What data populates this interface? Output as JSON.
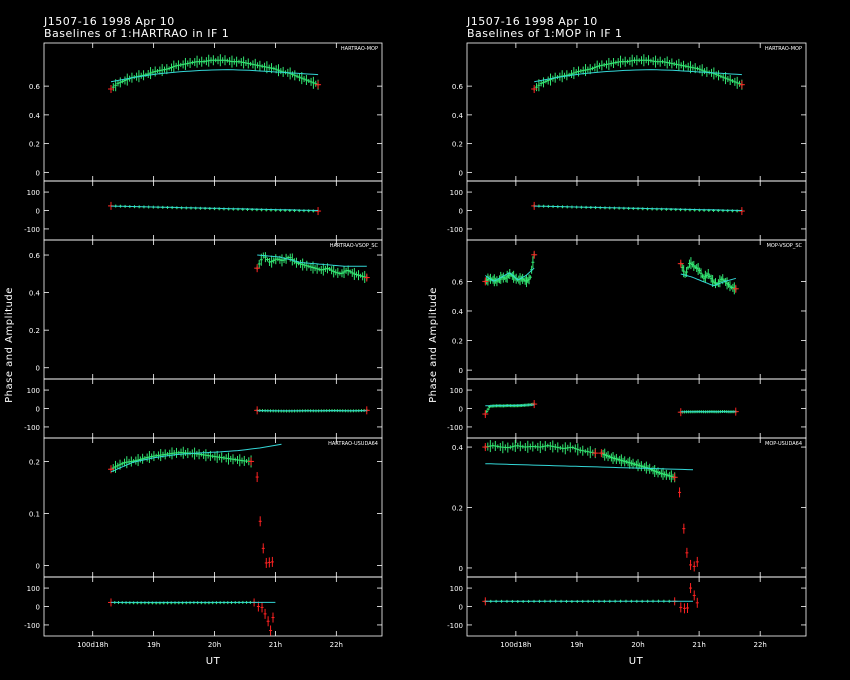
{
  "figure": {
    "ylabel": "Phase and Amplitude",
    "xlabel": "UT"
  },
  "columns": [
    {
      "title_line1": "J1507-16  1998 Apr 10",
      "title_line2": "Baselines of 1:HARTRAO in IF 1",
      "x_ticks": [
        {
          "v": 18,
          "text": "100d18h"
        },
        {
          "v": 19,
          "text": "19h"
        },
        {
          "v": 20,
          "text": "20h"
        },
        {
          "v": 21,
          "text": "21h"
        },
        {
          "v": 22,
          "text": "22h"
        }
      ],
      "panels": [
        {
          "corner_label": "HARTRAO-MOP",
          "amp_ticks": [
            "0",
            "0.2",
            "0.4",
            "0.6"
          ],
          "phase_ticks": [
            "100",
            "0",
            "-100"
          ]
        },
        {
          "corner_label": "HARTRAO-VSOP_SC",
          "amp_ticks": [
            "0",
            "0.2",
            "0.4",
            "0.6"
          ],
          "phase_ticks": [
            "100",
            "0",
            "-100"
          ]
        },
        {
          "corner_label": "HARTRAO-USUDA64",
          "amp_ticks": [
            "0",
            "0.1",
            "0.2"
          ],
          "phase_ticks": [
            "100",
            "0",
            "-100"
          ]
        }
      ]
    },
    {
      "title_line1": "J1507-16  1998 Apr 10",
      "title_line2": "Baselines of 1:MOP in IF 1",
      "x_ticks": [
        {
          "v": 18,
          "text": "100d18h"
        },
        {
          "v": 19,
          "text": "19h"
        },
        {
          "v": 20,
          "text": "20h"
        },
        {
          "v": 21,
          "text": "21h"
        },
        {
          "v": 22,
          "text": "22h"
        }
      ],
      "panels": [
        {
          "corner_label": "HARTRAO-MOP",
          "amp_ticks": [
            "0",
            "0.2",
            "0.4",
            "0.6"
          ],
          "phase_ticks": [
            "100",
            "0",
            "-100"
          ]
        },
        {
          "corner_label": "MOP-VSOP_SC",
          "amp_ticks": [
            "0",
            "0.2",
            "0.4",
            "0.6"
          ],
          "phase_ticks": [
            "100",
            "0",
            "-100"
          ]
        },
        {
          "corner_label": "MOP-USUDA64",
          "amp_ticks": [
            "0",
            "0.2",
            "0.4"
          ],
          "phase_ticks": [
            "100",
            "0",
            "-100"
          ]
        }
      ]
    }
  ],
  "chart_data": [
    {
      "type": "scatter",
      "baseline": "HARTRAO-MOP",
      "xlim": [
        17.2,
        22.75
      ],
      "amp_ylim": [
        -0.06,
        0.9
      ],
      "phase_ylim": [
        -160,
        160
      ],
      "series": [
        {
          "kind": "amplitude",
          "start": 18.3,
          "end": 21.7,
          "vals": [
            0.58,
            0.62,
            0.64,
            0.66,
            0.67,
            0.68,
            0.7,
            0.71,
            0.72,
            0.74,
            0.75,
            0.76,
            0.77,
            0.77,
            0.78,
            0.78,
            0.78,
            0.77,
            0.77,
            0.76,
            0.75,
            0.74,
            0.73,
            0.72,
            0.7,
            0.69,
            0.67,
            0.65,
            0.63,
            0.61
          ]
        },
        {
          "kind": "amplitude_model",
          "start": 18.3,
          "end": 21.7,
          "vals": [
            0.63,
            0.66,
            0.685,
            0.7,
            0.71,
            0.715,
            0.71,
            0.7,
            0.69,
            0.68
          ]
        },
        {
          "kind": "phase",
          "start": 18.3,
          "end": 21.7,
          "vals": [
            25,
            22,
            20,
            18,
            16,
            14,
            12,
            10,
            8,
            6,
            4,
            2,
            0,
            -1,
            -3
          ]
        },
        {
          "kind": "phase_model",
          "start": 18.3,
          "end": 21.7,
          "vals": [
            24,
            0
          ]
        }
      ]
    },
    {
      "type": "scatter",
      "baseline": "HARTRAO-VSOP_SC",
      "xlim": [
        17.2,
        22.75
      ],
      "amp_ylim": [
        -0.06,
        0.68
      ],
      "phase_ylim": [
        -160,
        160
      ],
      "series": [
        {
          "kind": "amplitude",
          "start": 20.7,
          "end": 22.5,
          "vals": [
            0.53,
            0.6,
            0.56,
            0.58,
            0.57,
            0.59,
            0.56,
            0.55,
            0.54,
            0.53,
            0.52,
            0.53,
            0.51,
            0.5,
            0.52,
            0.5,
            0.49,
            0.48
          ]
        },
        {
          "kind": "amplitude_model",
          "start": 20.7,
          "end": 22.5,
          "vals": [
            0.6,
            0.59,
            0.56,
            0.55,
            0.54,
            0.54
          ]
        },
        {
          "kind": "phase",
          "start": 20.7,
          "end": 22.5,
          "vals": [
            -10,
            -12,
            -13,
            -14,
            -14,
            -13,
            -12,
            -13,
            -12,
            -11,
            -12,
            -13,
            -12,
            -10
          ]
        },
        {
          "kind": "phase_model",
          "start": 20.7,
          "end": 22.5,
          "vals": [
            -12,
            -12
          ]
        }
      ]
    },
    {
      "type": "scatter",
      "baseline": "HARTRAO-USUDA64",
      "xlim": [
        17.2,
        22.75
      ],
      "amp_ylim": [
        -0.022,
        0.245
      ],
      "phase_ylim": [
        -160,
        160
      ],
      "series": [
        {
          "kind": "amplitude",
          "start": 18.3,
          "end": 20.6,
          "vals": [
            0.185,
            0.192,
            0.198,
            0.2,
            0.203,
            0.207,
            0.21,
            0.212,
            0.214,
            0.216,
            0.217,
            0.216,
            0.215,
            0.213,
            0.211,
            0.209,
            0.207,
            0.205,
            0.203,
            0.201,
            0.2
          ]
        },
        {
          "kind": "amplitude_outliers",
          "x": [
            20.7,
            20.75,
            20.8,
            20.85,
            20.9,
            20.95
          ],
          "vals": [
            0.17,
            0.085,
            0.033,
            0.005,
            0.006,
            0.007
          ]
        },
        {
          "kind": "amplitude_model",
          "start": 18.3,
          "end": 21.1,
          "vals": [
            0.18,
            0.198,
            0.207,
            0.213,
            0.216,
            0.218,
            0.221,
            0.226,
            0.233
          ]
        },
        {
          "kind": "phase",
          "start": 18.3,
          "end": 20.65,
          "vals": [
            22,
            21,
            20,
            20,
            19,
            20,
            20,
            21,
            20,
            21,
            21,
            22,
            22
          ]
        },
        {
          "kind": "phase_outliers",
          "x": [
            20.72,
            20.78,
            20.83,
            20.88,
            20.92,
            20.96
          ],
          "vals": [
            0,
            -5,
            -40,
            -80,
            -130,
            -60
          ]
        },
        {
          "kind": "phase_model",
          "start": 18.3,
          "end": 21.0,
          "vals": [
            22,
            22
          ]
        }
      ]
    },
    {
      "type": "scatter",
      "baseline": "HARTRAO-MOP",
      "xlim": [
        17.2,
        22.75
      ],
      "amp_ylim": [
        -0.06,
        0.9
      ],
      "phase_ylim": [
        -160,
        160
      ],
      "series": [
        {
          "kind": "amplitude",
          "start": 18.3,
          "end": 21.7,
          "vals": [
            0.58,
            0.62,
            0.64,
            0.66,
            0.67,
            0.68,
            0.7,
            0.71,
            0.72,
            0.74,
            0.75,
            0.76,
            0.77,
            0.77,
            0.78,
            0.78,
            0.78,
            0.77,
            0.77,
            0.76,
            0.75,
            0.74,
            0.73,
            0.72,
            0.7,
            0.69,
            0.67,
            0.65,
            0.63,
            0.61
          ]
        },
        {
          "kind": "amplitude_model",
          "start": 18.3,
          "end": 21.7,
          "vals": [
            0.63,
            0.66,
            0.685,
            0.7,
            0.71,
            0.715,
            0.71,
            0.7,
            0.69,
            0.68
          ]
        },
        {
          "kind": "phase",
          "start": 18.3,
          "end": 21.7,
          "vals": [
            25,
            22,
            20,
            18,
            16,
            14,
            12,
            10,
            8,
            6,
            4,
            2,
            0,
            -1,
            -3
          ]
        },
        {
          "kind": "phase_model",
          "start": 18.3,
          "end": 21.7,
          "vals": [
            24,
            0
          ]
        }
      ]
    },
    {
      "type": "scatter",
      "baseline": "MOP-VSOP_SC",
      "xlim": [
        17.2,
        22.75
      ],
      "amp_ylim": [
        -0.06,
        0.88
      ],
      "phase_ylim": [
        -160,
        160
      ],
      "series": [
        {
          "kind": "amplitude",
          "start": 17.5,
          "end": 18.3,
          "vals": [
            0.6,
            0.62,
            0.61,
            0.6,
            0.63,
            0.62,
            0.65,
            0.63,
            0.61,
            0.62,
            0.6,
            0.62,
            0.78
          ]
        },
        {
          "kind": "amplitude",
          "start": 20.7,
          "end": 21.6,
          "vals": [
            0.72,
            0.64,
            0.73,
            0.7,
            0.68,
            0.62,
            0.65,
            0.6,
            0.58,
            0.62,
            0.59,
            0.56,
            0.55
          ]
        },
        {
          "kind": "amplitude_model",
          "start": 17.5,
          "end": 18.3,
          "vals": [
            0.64,
            0.6,
            0.63,
            0.66,
            0.61,
            0.64,
            0.69
          ]
        },
        {
          "kind": "amplitude_model",
          "start": 20.7,
          "end": 21.6,
          "vals": [
            0.65,
            0.63,
            0.6,
            0.57,
            0.6,
            0.62
          ]
        },
        {
          "kind": "phase",
          "start": 17.5,
          "end": 18.3,
          "vals": [
            -30,
            12,
            14,
            15,
            14,
            16,
            15,
            15,
            16,
            18,
            20,
            24
          ]
        },
        {
          "kind": "phase",
          "start": 20.7,
          "end": 21.6,
          "vals": [
            -20,
            -18,
            -18,
            -17,
            -18,
            -17,
            -18,
            -16,
            -18,
            -17
          ]
        },
        {
          "kind": "phase_model",
          "start": 17.5,
          "end": 18.3,
          "vals": [
            15,
            16,
            20
          ]
        },
        {
          "kind": "phase_model",
          "start": 20.7,
          "end": 21.6,
          "vals": [
            -18,
            -18
          ]
        }
      ]
    },
    {
      "type": "scatter",
      "baseline": "MOP-USUDA64",
      "xlim": [
        17.2,
        22.75
      ],
      "amp_ylim": [
        -0.03,
        0.43
      ],
      "phase_ylim": [
        -160,
        160
      ],
      "series": [
        {
          "kind": "amplitude",
          "start": 17.5,
          "end": 19.3,
          "vals": [
            0.4,
            0.405,
            0.4,
            0.398,
            0.405,
            0.4,
            0.402,
            0.4,
            0.405,
            0.4,
            0.395,
            0.4,
            0.39,
            0.385,
            0.38
          ]
        },
        {
          "kind": "amplitude",
          "start": 19.4,
          "end": 20.6,
          "vals": [
            0.38,
            0.372,
            0.365,
            0.36,
            0.355,
            0.35,
            0.345,
            0.34,
            0.335,
            0.33,
            0.322,
            0.315,
            0.31,
            0.305,
            0.3
          ]
        },
        {
          "kind": "amplitude_outliers",
          "x": [
            20.68,
            20.75,
            20.8,
            20.86,
            20.92,
            20.97
          ],
          "vals": [
            0.25,
            0.13,
            0.05,
            0.01,
            0.005,
            0.02
          ]
        },
        {
          "kind": "amplitude_model",
          "start": 17.5,
          "end": 20.9,
          "vals": [
            0.345,
            0.325
          ]
        },
        {
          "kind": "phase",
          "start": 17.5,
          "end": 20.6,
          "vals": [
            28,
            28,
            27,
            28,
            29,
            27,
            28,
            28,
            29,
            28,
            29,
            28
          ]
        },
        {
          "kind": "phase_outliers",
          "x": [
            20.7,
            20.76,
            20.81,
            20.86,
            20.92,
            20.97
          ],
          "vals": [
            -5,
            -10,
            -8,
            100,
            60,
            20
          ]
        },
        {
          "kind": "phase_model",
          "start": 17.5,
          "end": 20.9,
          "vals": [
            28,
            28
          ]
        }
      ]
    }
  ]
}
